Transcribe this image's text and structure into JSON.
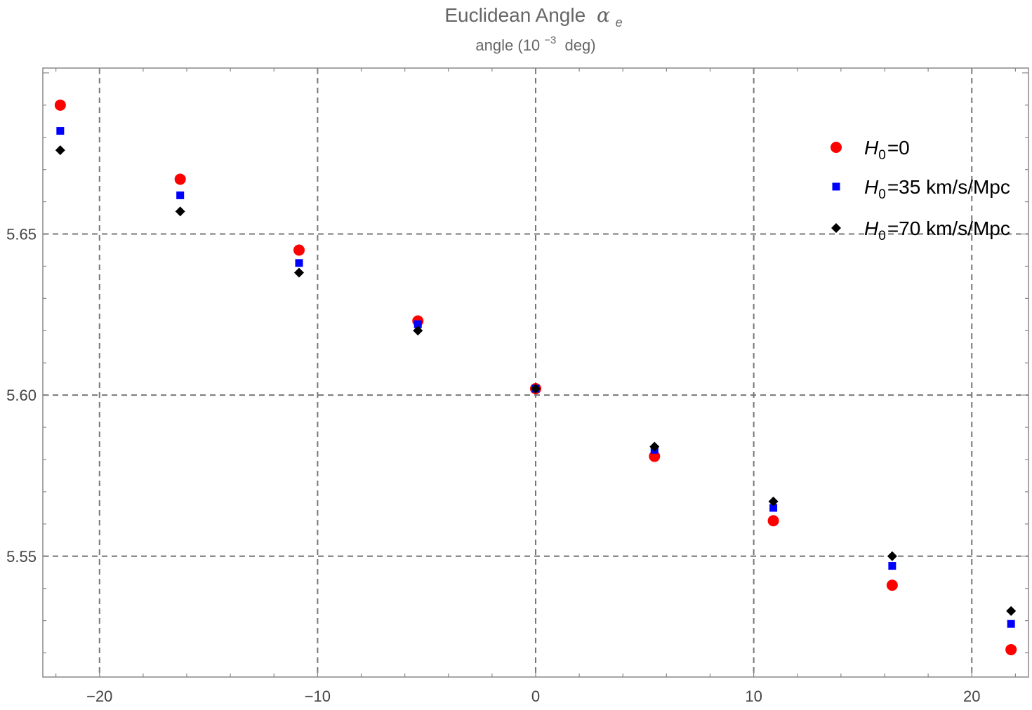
{
  "chart_data": {
    "type": "scatter",
    "title": "Euclidean Angle",
    "title_symbol": "α",
    "title_symbol_sub": "e",
    "subtitle": "angle (10",
    "subtitle_exp": "−3",
    "subtitle_unit": "deg)",
    "xlabel": "",
    "ylabel": "",
    "xlim": [
      -22.6,
      22.6
    ],
    "ylim": [
      5.5125,
      5.7015
    ],
    "x_ticks": [
      -20,
      -10,
      0,
      10,
      20
    ],
    "x_tick_labels": [
      "−20",
      "−10",
      "0",
      "10",
      "20"
    ],
    "y_ticks": [
      5.55,
      5.6,
      5.65
    ],
    "y_tick_labels": [
      "5.55",
      "5.60",
      "5.65"
    ],
    "grid": true,
    "legend_position": "top-right",
    "series": [
      {
        "name": "H0=0",
        "name_symbol": "H",
        "name_sub": "0",
        "name_rest": "=0",
        "marker": "circle",
        "color": "#ff0000",
        "x": [
          -21.8,
          -16.3,
          -10.85,
          -5.4,
          0,
          5.45,
          10.9,
          16.35,
          21.8
        ],
        "y": [
          5.69,
          5.667,
          5.645,
          5.623,
          5.602,
          5.581,
          5.561,
          5.541,
          5.521
        ]
      },
      {
        "name": "H0=35 km/s/Mpc",
        "name_symbol": "H",
        "name_sub": "0",
        "name_rest": "=35 km/s/Mpc",
        "marker": "square",
        "color": "#0000ff",
        "x": [
          -21.8,
          -16.3,
          -10.85,
          -5.4,
          0,
          5.45,
          10.9,
          16.35,
          21.8
        ],
        "y": [
          5.682,
          5.662,
          5.641,
          5.622,
          5.602,
          5.583,
          5.565,
          5.547,
          5.529
        ]
      },
      {
        "name": "H0=70 km/s/Mpc",
        "name_symbol": "H",
        "name_sub": "0",
        "name_rest": "=70 km/s/Mpc",
        "marker": "diamond",
        "color": "#000000",
        "x": [
          -21.8,
          -16.3,
          -10.85,
          -5.4,
          0,
          5.45,
          10.9,
          16.35,
          21.8
        ],
        "y": [
          5.676,
          5.657,
          5.638,
          5.62,
          5.602,
          5.584,
          5.567,
          5.55,
          5.533
        ]
      }
    ]
  }
}
